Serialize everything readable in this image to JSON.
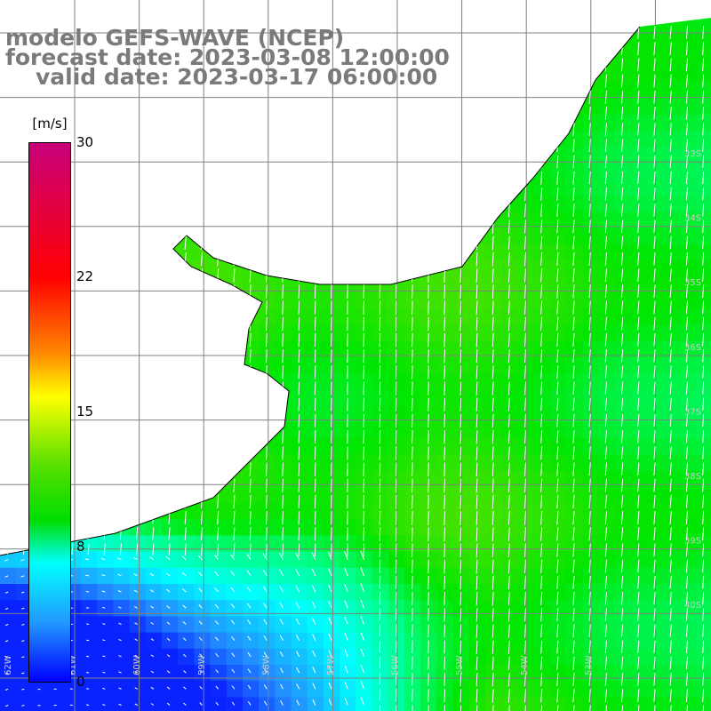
{
  "title": {
    "model": "modelo GEFS-WAVE (NCEP)",
    "forecast": "forecast date: 2023-03-08 12:00:00",
    "valid": "valid date: 2023-03-17 06:00:00"
  },
  "colorbar": {
    "unit": "[m/s]",
    "ticks": [
      "30",
      "22",
      "15",
      "8",
      "0"
    ],
    "colors": [
      "#c8007a",
      "#ff0000",
      "#ff8800",
      "#ffff00",
      "#55e000",
      "#00dd00",
      "#00ffff",
      "#2299ff",
      "#0000ff"
    ]
  },
  "lat_labels": [
    "33S",
    "34S",
    "35S",
    "36S",
    "37S",
    "38S",
    "39S",
    "40S"
  ],
  "lon_labels": [
    "62W",
    "61W",
    "60W",
    "59W",
    "58W",
    "57W",
    "56W",
    "55W",
    "54W",
    "53W"
  ]
}
